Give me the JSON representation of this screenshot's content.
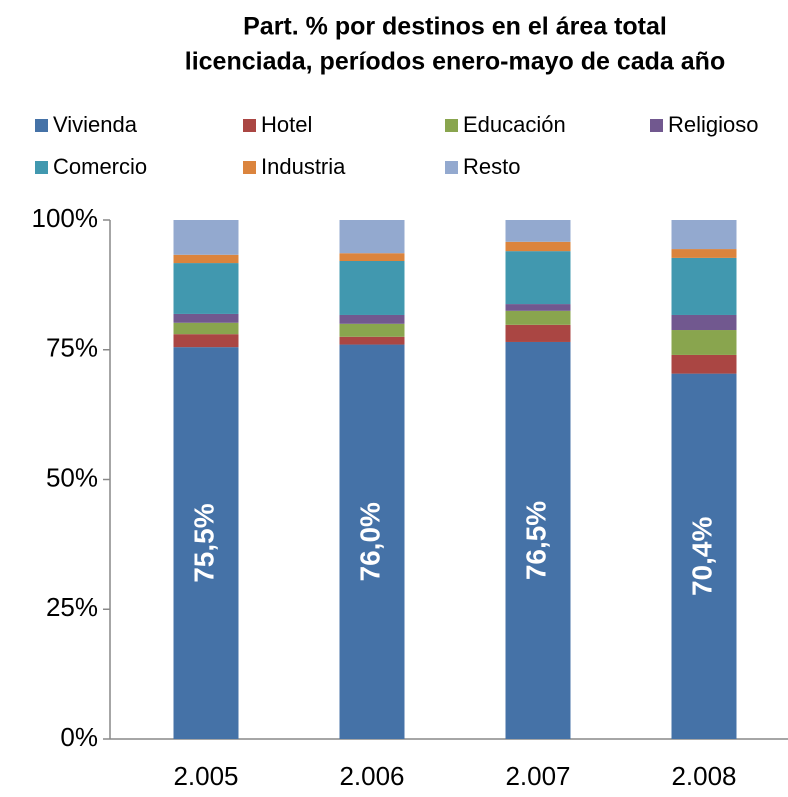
{
  "chart_data": {
    "type": "stacked_bar",
    "title": "Part. % por destinos en el área total",
    "subtitle": "licenciada, períodos enero-mayo de cada año",
    "categories": [
      "2.005",
      "2.006",
      "2.007",
      "2.008"
    ],
    "series": [
      {
        "name": "Vivienda",
        "color": "#4572a7",
        "values": [
          75.5,
          76.0,
          76.5,
          70.4
        ],
        "value_labels": [
          "75,5%",
          "76,0%",
          "76,5%",
          "70,4%"
        ]
      },
      {
        "name": "Hotel",
        "color": "#aa4643",
        "values": [
          2.5,
          1.5,
          3.3,
          3.6
        ]
      },
      {
        "name": "Educación",
        "color": "#89a54e",
        "values": [
          2.2,
          2.5,
          2.7,
          4.8
        ]
      },
      {
        "name": "Religioso",
        "color": "#71588f",
        "values": [
          1.7,
          1.7,
          1.3,
          2.9
        ]
      },
      {
        "name": "Comercio",
        "color": "#4198af",
        "values": [
          9.8,
          10.4,
          10.2,
          11.0
        ]
      },
      {
        "name": "Industria",
        "color": "#db843d",
        "values": [
          1.6,
          1.5,
          1.8,
          1.7
        ]
      },
      {
        "name": "Resto",
        "color": "#93a9cf",
        "values": [
          6.7,
          6.4,
          4.2,
          5.6
        ]
      }
    ],
    "ylim": [
      0,
      100
    ],
    "yticks": [
      {
        "value": 0,
        "label": "0%"
      },
      {
        "value": 25,
        "label": "25%"
      },
      {
        "value": 50,
        "label": "50%"
      },
      {
        "value": 75,
        "label": "75%"
      },
      {
        "value": 100,
        "label": "100%"
      }
    ],
    "grid": false
  }
}
